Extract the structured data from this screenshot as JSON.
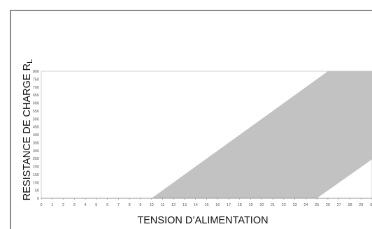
{
  "chart_data": {
    "type": "area",
    "title": "",
    "xlabel": "TENSION D’ALIMENTATION",
    "ylabel": "RESISTANCE DE CHARGE R",
    "ylabel_subscript": "L",
    "xlim": [
      0,
      30
    ],
    "ylim": [
      0,
      800
    ],
    "x_ticks": [
      "0",
      "1",
      "2",
      "3",
      "4",
      "5",
      "6",
      "7",
      "8",
      "9",
      "10",
      "11",
      "12",
      "13",
      "14",
      "15",
      "16",
      "17",
      "18",
      "19",
      "20",
      "21",
      "22",
      "23",
      "24",
      "25",
      "26",
      "27",
      "28",
      "29",
      "30"
    ],
    "y_ticks": [
      "0",
      "50",
      "100",
      "150",
      "200",
      "250",
      "300",
      "350",
      "400",
      "450",
      "500",
      "550",
      "600",
      "650",
      "700",
      "750",
      "800"
    ],
    "grid": false,
    "legend": "none",
    "region": {
      "name": "",
      "fill_color": "#c2c2c2",
      "points": [
        [
          10,
          0
        ],
        [
          25,
          0
        ],
        [
          30,
          245
        ],
        [
          30,
          800
        ],
        [
          26,
          800
        ]
      ]
    },
    "colors": {
      "frame": "#1a1a1a",
      "box": "#cfcfcf",
      "text": "#111111"
    }
  }
}
